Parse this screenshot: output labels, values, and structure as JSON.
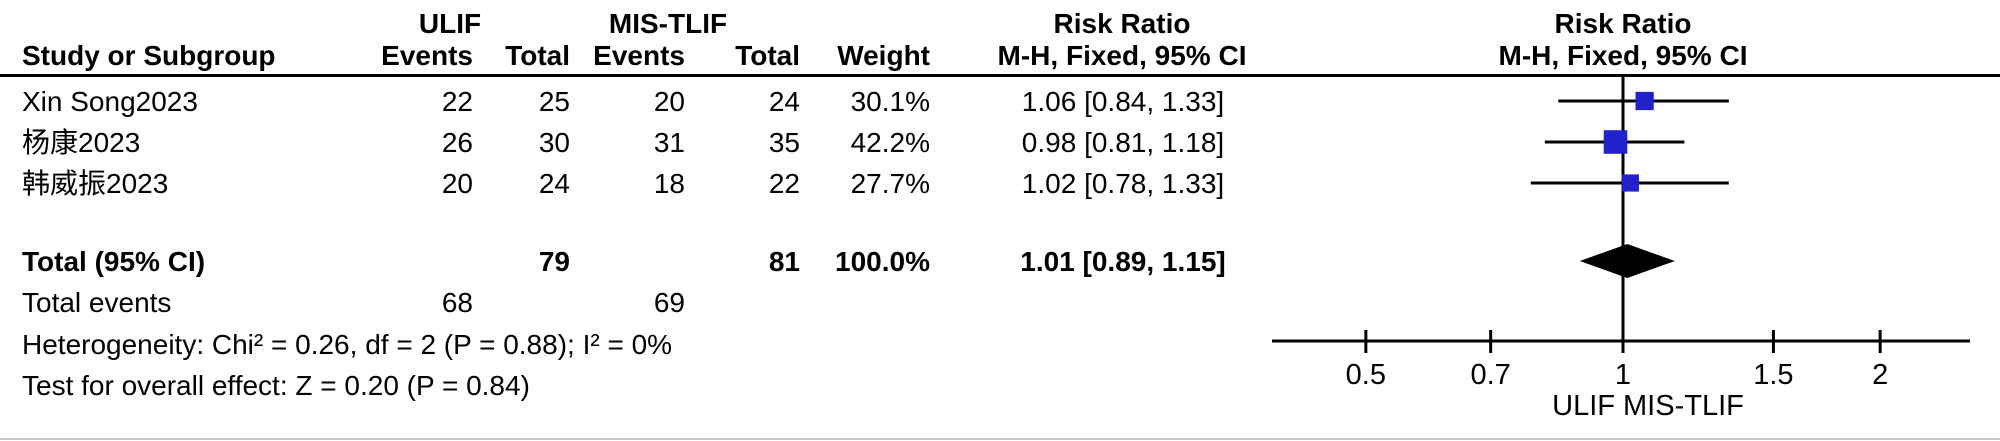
{
  "header": {
    "group1": "ULIF",
    "group2": "MIS-TLIF",
    "risk_ratio": "Risk Ratio",
    "method": "M-H, Fixed, 95% CI",
    "study_col": "Study or Subgroup",
    "events_col": "Events",
    "total_col": "Total",
    "weight_col": "Weight"
  },
  "colors": {
    "square": "#2222cd",
    "diamond": "#000000",
    "line": "#000000",
    "text": "#000000",
    "bottom_border": "#c9c9c9"
  },
  "chart_data": {
    "type": "forest_plot",
    "measure": "Risk Ratio",
    "method": "M-H, Fixed, 95% CI",
    "x_scale": "log",
    "x_ticks": [
      0.5,
      0.7,
      1,
      1.5,
      2
    ],
    "axis_sublabel": "ULIF  MIS-TLIF",
    "studies": [
      {
        "name": "Xin Song2023",
        "events_1": "22",
        "total_1": "25",
        "events_2": "20",
        "total_2": "24",
        "weight": "30.1%",
        "weight_num": 30.1,
        "rr": 1.06,
        "ci_low": 0.84,
        "ci_high": 1.33,
        "ci_text": "1.06 [0.84, 1.33]"
      },
      {
        "name": "杨康2023",
        "events_1": "26",
        "total_1": "30",
        "events_2": "31",
        "total_2": "35",
        "weight": "42.2%",
        "weight_num": 42.2,
        "rr": 0.98,
        "ci_low": 0.81,
        "ci_high": 1.18,
        "ci_text": "0.98 [0.81, 1.18]"
      },
      {
        "name": "韩威振2023",
        "events_1": "20",
        "total_1": "24",
        "events_2": "18",
        "total_2": "22",
        "weight": "27.7%",
        "weight_num": 27.7,
        "rr": 1.02,
        "ci_low": 0.78,
        "ci_high": 1.33,
        "ci_text": "1.02 [0.78, 1.33]"
      }
    ],
    "total": {
      "label": "Total (95% CI)",
      "total_1": "79",
      "total_2": "81",
      "weight": "100.0%",
      "rr": 1.01,
      "ci_low": 0.89,
      "ci_high": 1.15,
      "ci_text": "1.01 [0.89, 1.15]"
    },
    "total_events": {
      "label": "Total events",
      "events_1": "68",
      "events_2": "69"
    },
    "heterogeneity": "Heterogeneity: Chi² = 0.26, df = 2 (P = 0.88); I² = 0%",
    "overall_effect": "Test for overall effect: Z = 0.20 (P = 0.84)"
  }
}
